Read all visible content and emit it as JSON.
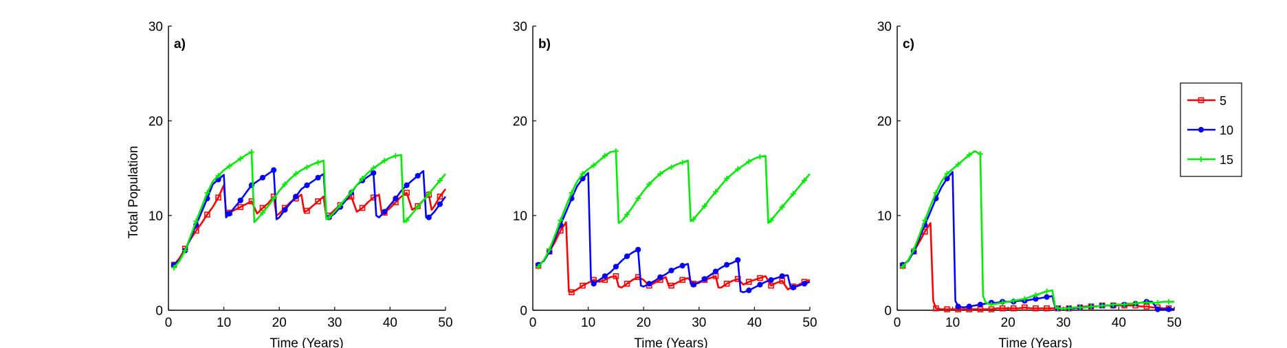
{
  "chart_data": [
    {
      "type": "line",
      "panel_label": "a)",
      "xlabel": "Time (Years)",
      "ylabel": "Total Population",
      "xlim": [
        0,
        50
      ],
      "ylim": [
        0,
        30
      ],
      "xticks": [
        0,
        10,
        20,
        30,
        40,
        50
      ],
      "yticks": [
        0,
        10,
        20,
        30
      ],
      "grid": false,
      "series": [
        {
          "name": "5",
          "color": "#ff0000",
          "marker": "square",
          "x": [
            1,
            2,
            3,
            4,
            5,
            6,
            7,
            8,
            9,
            10,
            10.4,
            11,
            12,
            13,
            14,
            15,
            16,
            17,
            18,
            19,
            19.5,
            20,
            21,
            22,
            23,
            24,
            24.5,
            25,
            26,
            27,
            28,
            28.5,
            29,
            30,
            31,
            32,
            33,
            34,
            35,
            36,
            37,
            38,
            38.5,
            39,
            40,
            41,
            42,
            43,
            44,
            45,
            46,
            47,
            47.5,
            48,
            49,
            50
          ],
          "y": [
            4.8,
            5.5,
            6.5,
            7.5,
            8.4,
            9.2,
            10.1,
            10.9,
            11.9,
            13.2,
            10.4,
            10.3,
            10.6,
            10.9,
            11.2,
            11.5,
            10.2,
            10.8,
            11.3,
            12.0,
            10.0,
            10.2,
            10.8,
            11.4,
            11.8,
            12.2,
            10.4,
            10.5,
            11.0,
            11.5,
            12.0,
            9.8,
            10.0,
            10.6,
            11.1,
            11.6,
            12.0,
            10.4,
            10.8,
            11.4,
            11.9,
            12.2,
            10.2,
            10.3,
            10.8,
            11.4,
            12.0,
            12.4,
            10.6,
            11.0,
            11.6,
            12.2,
            10.6,
            11.0,
            12.0,
            12.8
          ]
        },
        {
          "name": "10",
          "color": "#0000ff",
          "marker": "circle",
          "x": [
            1,
            2,
            3,
            4,
            5,
            6,
            7,
            8,
            9,
            10,
            10.4,
            11,
            12,
            13,
            14,
            15,
            16,
            17,
            18,
            19,
            19.5,
            20,
            21,
            22,
            23,
            24,
            25,
            26,
            27,
            28,
            28.5,
            29,
            30,
            31,
            32,
            33,
            34,
            35,
            36,
            37,
            37.5,
            38,
            39,
            40,
            41,
            42,
            43,
            44,
            45,
            46,
            46.5,
            47,
            48,
            49,
            50
          ],
          "y": [
            4.8,
            5.3,
            6.3,
            7.6,
            9.0,
            10.4,
            11.8,
            13.3,
            13.8,
            14.3,
            9.8,
            10.2,
            10.9,
            11.6,
            12.4,
            13.2,
            13.6,
            14.0,
            14.4,
            14.8,
            9.6,
            9.8,
            10.6,
            11.3,
            12.0,
            12.8,
            13.2,
            13.6,
            14.0,
            14.4,
            10.0,
            9.8,
            10.2,
            10.9,
            11.6,
            12.4,
            13.2,
            13.7,
            14.1,
            14.5,
            10.0,
            9.8,
            10.4,
            11.1,
            11.8,
            12.6,
            13.2,
            13.7,
            14.2,
            14.7,
            9.8,
            9.8,
            10.4,
            11.2,
            12.0
          ]
        },
        {
          "name": "15",
          "color": "#00ee00",
          "marker": "plus",
          "x": [
            1,
            2,
            3,
            4,
            5,
            6,
            7,
            8,
            9,
            10,
            11,
            12,
            13,
            14,
            15,
            15.5,
            16,
            17,
            18,
            19,
            20,
            21,
            22,
            23,
            24,
            25,
            26,
            27,
            28,
            28.5,
            29,
            30,
            31,
            32,
            33,
            34,
            35,
            36,
            37,
            38,
            39,
            40,
            41,
            42,
            42.5,
            43,
            44,
            45,
            46,
            47,
            48,
            49,
            50
          ],
          "y": [
            4.5,
            5.2,
            6.3,
            7.8,
            9.4,
            10.9,
            12.4,
            13.6,
            14.2,
            14.8,
            15.2,
            15.6,
            16.0,
            16.4,
            16.7,
            9.3,
            9.6,
            10.3,
            11.0,
            11.8,
            12.6,
            13.3,
            13.9,
            14.4,
            14.8,
            15.1,
            15.4,
            15.6,
            15.8,
            9.6,
            9.8,
            10.4,
            11.1,
            11.8,
            12.5,
            13.2,
            13.9,
            14.5,
            15.0,
            15.4,
            15.8,
            16.1,
            16.3,
            16.4,
            9.3,
            9.5,
            10.2,
            10.9,
            11.6,
            12.3,
            13.0,
            13.7,
            14.4
          ]
        }
      ]
    },
    {
      "type": "line",
      "panel_label": "b)",
      "xlabel": "Time (Years)",
      "ylabel": "",
      "xlim": [
        0,
        50
      ],
      "ylim": [
        0,
        30
      ],
      "xticks": [
        0,
        10,
        20,
        30,
        40,
        50
      ],
      "yticks": [
        0,
        10,
        20,
        30
      ],
      "grid": false,
      "series": [
        {
          "name": "5",
          "color": "#ff0000",
          "marker": "square",
          "x": [
            1,
            2,
            3,
            4,
            5,
            6,
            6.5,
            7,
            8,
            9,
            10,
            11,
            12,
            13,
            14,
            15,
            15.5,
            16,
            17,
            18,
            19,
            20,
            21,
            22,
            23,
            24,
            24.5,
            25,
            26,
            27,
            28,
            29,
            30,
            31,
            32,
            33,
            33.5,
            34,
            35,
            36,
            37,
            38,
            39,
            40,
            41,
            42,
            43,
            44,
            45,
            46,
            47,
            48,
            49,
            50
          ],
          "y": [
            4.7,
            5.3,
            6.2,
            7.2,
            8.4,
            9.3,
            2.0,
            1.9,
            2.2,
            2.6,
            2.9,
            3.2,
            3.0,
            3.2,
            3.5,
            3.6,
            2.5,
            2.4,
            2.8,
            3.2,
            3.5,
            3.2,
            2.6,
            2.9,
            3.2,
            3.5,
            2.6,
            2.6,
            2.9,
            3.2,
            3.4,
            2.8,
            3.0,
            3.2,
            3.4,
            3.6,
            2.4,
            2.4,
            2.8,
            3.1,
            3.3,
            2.7,
            3.0,
            3.2,
            3.4,
            3.6,
            2.6,
            2.9,
            3.1,
            2.2,
            2.5,
            2.7,
            3.0,
            3.2
          ]
        },
        {
          "name": "10",
          "color": "#0000ff",
          "marker": "circle",
          "x": [
            1,
            2,
            3,
            4,
            5,
            6,
            7,
            8,
            9,
            10,
            10.5,
            11,
            12,
            13,
            14,
            15,
            16,
            17,
            18,
            19,
            19.5,
            20,
            21,
            22,
            23,
            24,
            25,
            26,
            27,
            28,
            28.5,
            29,
            30,
            31,
            32,
            33,
            34,
            35,
            36,
            37,
            37.5,
            38,
            39,
            40,
            41,
            42,
            43,
            44,
            45,
            46,
            46.5,
            47,
            48,
            49,
            50
          ],
          "y": [
            4.8,
            5.2,
            6.2,
            7.6,
            9.0,
            10.4,
            11.8,
            13.1,
            13.9,
            14.5,
            3.2,
            2.8,
            3.2,
            3.6,
            4.0,
            4.6,
            5.2,
            5.7,
            6.1,
            6.4,
            2.6,
            2.5,
            2.8,
            3.1,
            3.5,
            3.8,
            4.2,
            4.5,
            4.7,
            4.9,
            2.8,
            2.7,
            2.9,
            3.3,
            3.7,
            4.1,
            4.5,
            4.8,
            5.0,
            5.3,
            2.0,
            1.9,
            2.1,
            2.4,
            2.7,
            3.0,
            3.2,
            3.4,
            3.6,
            3.7,
            2.5,
            2.4,
            2.6,
            2.8,
            3.0
          ]
        },
        {
          "name": "15",
          "color": "#00ee00",
          "marker": "plus",
          "x": [
            1,
            2,
            3,
            4,
            5,
            6,
            7,
            8,
            9,
            10,
            11,
            12,
            13,
            14,
            15,
            15.5,
            16,
            17,
            18,
            19,
            20,
            21,
            22,
            23,
            24,
            25,
            26,
            27,
            28,
            28.5,
            29,
            30,
            31,
            32,
            33,
            34,
            35,
            36,
            37,
            38,
            39,
            40,
            41,
            42,
            42.5,
            43,
            44,
            45,
            46,
            47,
            48,
            49,
            50
          ],
          "y": [
            4.6,
            5.3,
            6.4,
            7.9,
            9.5,
            11.0,
            12.4,
            13.6,
            14.4,
            14.9,
            15.3,
            15.8,
            16.3,
            16.7,
            16.8,
            9.2,
            9.4,
            10.1,
            10.9,
            11.8,
            12.6,
            13.3,
            13.9,
            14.4,
            14.8,
            15.1,
            15.4,
            15.6,
            15.8,
            9.4,
            9.6,
            10.3,
            11.0,
            11.8,
            12.5,
            13.2,
            13.9,
            14.4,
            14.9,
            15.3,
            15.7,
            16.0,
            16.2,
            16.3,
            9.2,
            9.5,
            10.2,
            10.9,
            11.6,
            12.3,
            13.0,
            13.7,
            14.4
          ]
        }
      ]
    },
    {
      "type": "line",
      "panel_label": "c)",
      "xlabel": "Time (Years)",
      "ylabel": "",
      "xlim": [
        0,
        50
      ],
      "ylim": [
        0,
        30
      ],
      "xticks": [
        0,
        10,
        20,
        30,
        40,
        50
      ],
      "yticks": [
        0,
        10,
        20,
        30
      ],
      "grid": false,
      "legend_position": "top-right",
      "series": [
        {
          "name": "5",
          "color": "#ff0000",
          "marker": "square",
          "x": [
            1,
            2,
            3,
            4,
            5,
            6,
            6.5,
            7,
            8,
            9,
            10,
            11,
            12,
            13,
            14,
            15,
            16,
            17,
            18,
            19,
            20,
            21,
            22,
            23,
            24,
            25,
            26,
            27,
            28,
            29,
            30,
            31,
            32,
            33,
            34,
            35,
            36,
            37,
            38,
            39,
            40,
            41,
            42,
            43,
            44,
            45,
            46,
            47,
            48,
            49,
            50
          ],
          "y": [
            4.7,
            5.3,
            6.2,
            7.2,
            8.3,
            9.2,
            1.0,
            0.2,
            0.1,
            0.1,
            0.1,
            0.1,
            0.1,
            0.1,
            0.1,
            0.1,
            0.1,
            0.1,
            0.2,
            0.2,
            0.2,
            0.2,
            0.2,
            0.3,
            0.2,
            0.2,
            0.2,
            0.2,
            0.2,
            0.2,
            0.2,
            0.2,
            0.3,
            0.3,
            0.4,
            0.4,
            0.4,
            0.5,
            0.5,
            0.5,
            0.5,
            0.5,
            0.5,
            0.5,
            0.4,
            0.4,
            0.3,
            0.3,
            0.2,
            0.2,
            0.1
          ]
        },
        {
          "name": "10",
          "color": "#0000ff",
          "marker": "circle",
          "x": [
            1,
            2,
            3,
            4,
            5,
            6,
            7,
            8,
            9,
            10,
            10.5,
            11,
            12,
            13,
            14,
            15,
            16,
            17,
            18,
            19,
            20,
            21,
            22,
            23,
            24,
            25,
            26,
            27,
            28,
            28.5,
            29,
            30,
            31,
            32,
            33,
            34,
            35,
            36,
            37,
            38,
            39,
            40,
            41,
            42,
            43,
            44,
            45,
            46,
            47,
            48,
            49,
            50
          ],
          "y": [
            4.8,
            5.2,
            6.2,
            7.6,
            9.0,
            10.4,
            11.8,
            13.0,
            13.9,
            14.6,
            1.0,
            0.4,
            0.3,
            0.4,
            0.5,
            0.6,
            0.7,
            0.8,
            0.8,
            0.9,
            0.9,
            0.9,
            1.0,
            1.0,
            1.1,
            1.2,
            1.3,
            1.4,
            1.5,
            0.3,
            0.2,
            0.2,
            0.2,
            0.2,
            0.3,
            0.3,
            0.4,
            0.4,
            0.5,
            0.5,
            0.5,
            0.6,
            0.6,
            0.7,
            0.7,
            0.8,
            0.9,
            0.9,
            0.1,
            0.1,
            0.1,
            0.1
          ]
        },
        {
          "name": "15",
          "color": "#00ee00",
          "marker": "plus",
          "x": [
            1,
            2,
            3,
            4,
            5,
            6,
            7,
            8,
            9,
            10,
            11,
            12,
            13,
            14,
            15,
            15.5,
            16,
            17,
            18,
            19,
            20,
            21,
            22,
            23,
            24,
            25,
            26,
            27,
            28,
            28.5,
            29,
            30,
            31,
            32,
            33,
            34,
            35,
            36,
            37,
            38,
            39,
            40,
            41,
            42,
            43,
            44,
            45,
            46,
            47,
            48,
            49,
            50
          ],
          "y": [
            4.6,
            5.3,
            6.4,
            7.9,
            9.5,
            11.0,
            12.4,
            13.6,
            14.4,
            14.9,
            15.4,
            15.9,
            16.4,
            16.8,
            16.5,
            1.5,
            0.8,
            0.6,
            0.7,
            0.8,
            0.9,
            1.0,
            1.1,
            1.2,
            1.4,
            1.6,
            1.8,
            2.0,
            2.1,
            0.4,
            0.2,
            0.2,
            0.2,
            0.3,
            0.3,
            0.3,
            0.4,
            0.4,
            0.5,
            0.5,
            0.6,
            0.6,
            0.6,
            0.7,
            0.7,
            0.8,
            0.8,
            0.8,
            0.8,
            0.9,
            0.9,
            0.9
          ]
        }
      ]
    }
  ]
}
